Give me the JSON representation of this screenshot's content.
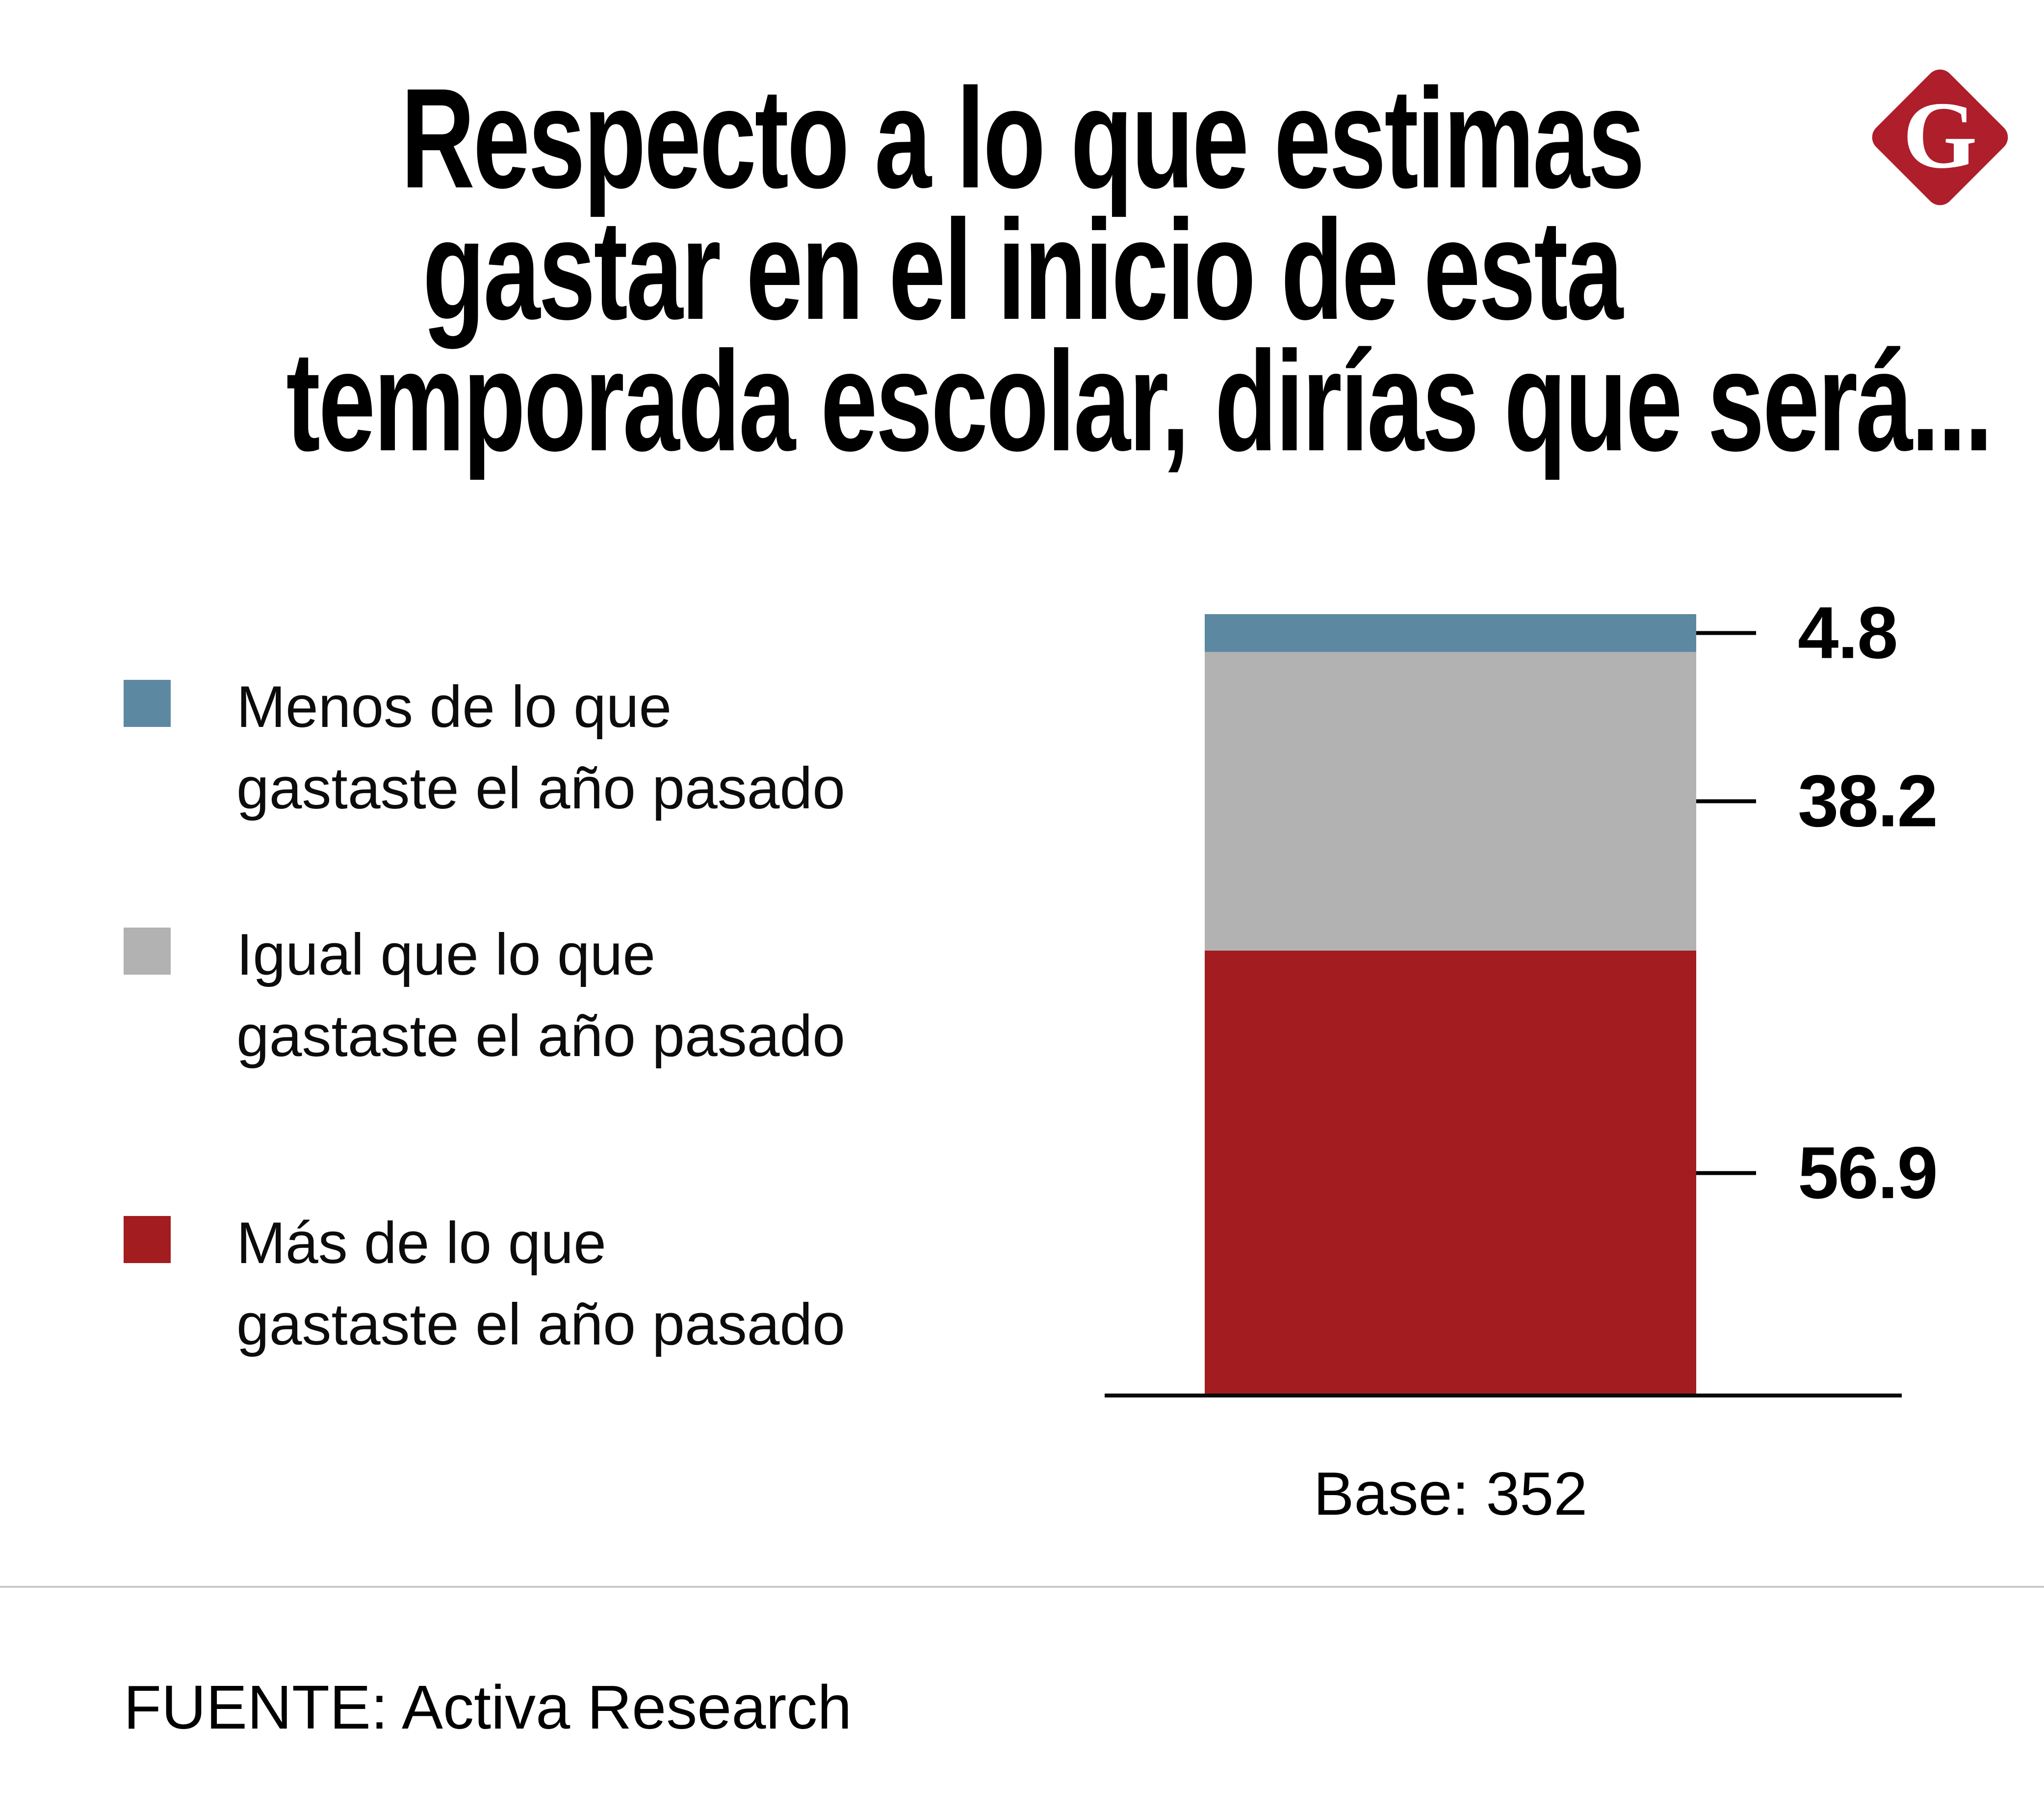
{
  "page": {
    "background": "#ffffff"
  },
  "title": {
    "lines": [
      "Respecto a lo que estimas",
      "gastar en el inicio de esta",
      "temporada escolar, dirías que será..."
    ],
    "color": "#000000"
  },
  "logo": {
    "letter": "G",
    "bg_color": "#AE1E2B",
    "letter_color": "#ffffff"
  },
  "legend": {
    "items": [
      {
        "swatch_color": "#5C89A1",
        "line1": "Menos de lo que",
        "line2": "gastaste el año pasado"
      },
      {
        "swatch_color": "#B2B2B3",
        "line1": "Igual que lo que",
        "line2": "gastaste el año pasado"
      },
      {
        "swatch_color": "#A31C20",
        "line1": "Más de lo que",
        "line2": "gastaste el año pasado"
      }
    ]
  },
  "chart_data": {
    "type": "bar",
    "stacked": true,
    "orientation": "vertical",
    "title": "Respecto a lo que estimas gastar en el inicio de esta temporada escolar, dirías que será...",
    "series": [
      {
        "name": "Menos de lo que gastaste el año pasado",
        "value": 4.8,
        "color": "#5C89A1"
      },
      {
        "name": "Igual que lo que gastaste el año pasado",
        "value": 38.2,
        "color": "#B2B2B3"
      },
      {
        "name": "Más de lo que gastaste el año pasado",
        "value": 56.9,
        "color": "#A31C20"
      }
    ],
    "value_labels": [
      "4.8",
      "38.2",
      "56.9"
    ],
    "base_note": "Base: 352",
    "legend_position": "left",
    "grid": false,
    "axis_line_color": "#000000"
  },
  "footer": {
    "source": "FUENTE: Activa Research",
    "divider_color": "#c9c9c9"
  }
}
